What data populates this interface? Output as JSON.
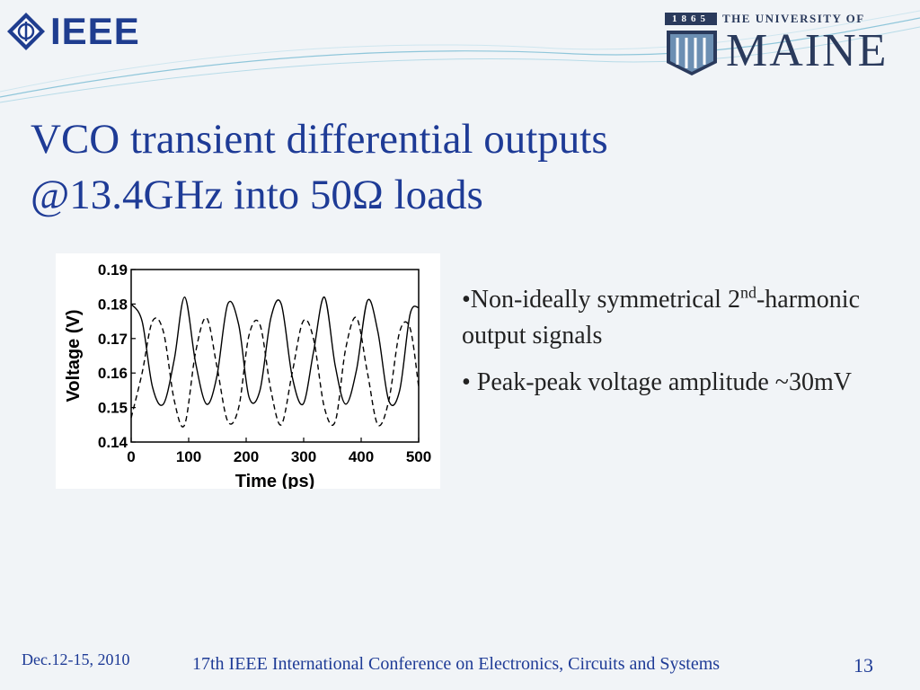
{
  "header": {
    "ieee_logo_text": "IEEE",
    "maine_logo": {
      "year": "1865",
      "university": "THE UNIVERSITY OF",
      "name": "MAINE"
    }
  },
  "slide": {
    "title_line1": "VCO transient differential outputs",
    "title_line2": "@13.4GHz into 50Ω loads",
    "bullets": [
      {
        "pre": "•Non-ideally symmetrical 2",
        "sup": "nd",
        "post": "-harmonic output signals"
      },
      {
        "pre": "• Peak-peak voltage amplitude ~30mV",
        "sup": "",
        "post": ""
      }
    ]
  },
  "footer": {
    "date": "Dec.12-15, 2010",
    "conference": "17th IEEE International Conference on Electronics, Circuits and Systems",
    "page": "13"
  },
  "colors": {
    "title": "#1e3b96",
    "ieee_blue": "#1f3d8f",
    "maine_navy": "#2a3a5c",
    "background": "#f1f4f7"
  },
  "chart_data": {
    "type": "line",
    "xlabel": "Time (ps)",
    "ylabel": "Voltage (V)",
    "xlim": [
      0,
      500
    ],
    "ylim": [
      0.14,
      0.19
    ],
    "xticks": [
      "0",
      "100",
      "200",
      "300",
      "400",
      "500"
    ],
    "yticks": [
      "0.19",
      "0.18",
      "0.17",
      "0.16",
      "0.15",
      "0.14"
    ],
    "grid": false,
    "series": [
      {
        "style": "solid",
        "x": [
          0,
          19,
          37,
          56,
          75,
          93,
          112,
          131,
          149,
          168,
          187,
          205,
          224,
          243,
          261,
          280,
          299,
          317,
          336,
          355,
          373,
          392,
          411,
          429,
          448,
          467,
          485,
          500
        ],
        "y": [
          0.18,
          0.175,
          0.156,
          0.151,
          0.164,
          0.182,
          0.163,
          0.151,
          0.159,
          0.18,
          0.174,
          0.153,
          0.155,
          0.176,
          0.18,
          0.159,
          0.151,
          0.166,
          0.182,
          0.162,
          0.151,
          0.161,
          0.181,
          0.172,
          0.152,
          0.155,
          0.177,
          0.179
        ]
      },
      {
        "style": "dashed",
        "x": [
          0,
          19,
          37,
          56,
          75,
          93,
          112,
          131,
          149,
          168,
          187,
          205,
          224,
          243,
          261,
          280,
          299,
          317,
          336,
          355,
          373,
          392,
          411,
          429,
          448,
          467,
          485,
          500
        ],
        "y": [
          0.147,
          0.16,
          0.175,
          0.172,
          0.152,
          0.145,
          0.166,
          0.176,
          0.162,
          0.146,
          0.15,
          0.171,
          0.174,
          0.155,
          0.145,
          0.16,
          0.175,
          0.17,
          0.15,
          0.146,
          0.167,
          0.176,
          0.16,
          0.145,
          0.152,
          0.172,
          0.173,
          0.156
        ]
      }
    ]
  }
}
